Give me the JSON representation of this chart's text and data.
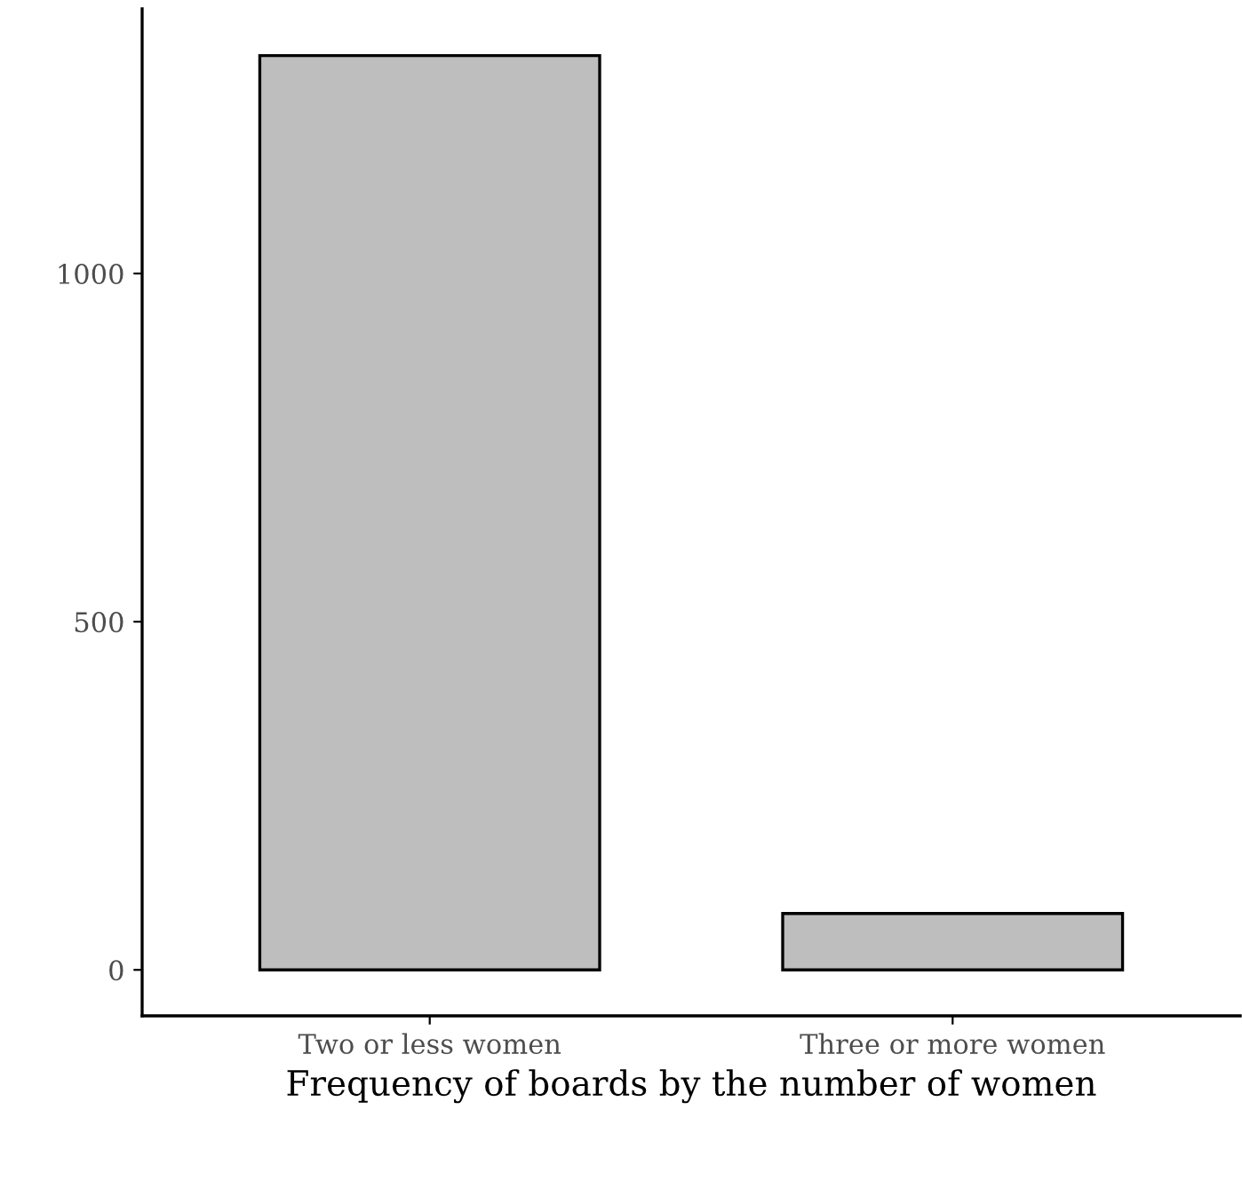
{
  "chart_data": {
    "type": "bar",
    "xlabel": "Frequency of boards by the number of women",
    "categories": [
      "Two or less women",
      "Three or more women"
    ],
    "values": [
      1313,
      81
    ],
    "color": "#bebebe",
    "ylim": [
      -66,
      1380
    ],
    "yticks": [
      0,
      500,
      1000
    ],
    "grid": false
  }
}
